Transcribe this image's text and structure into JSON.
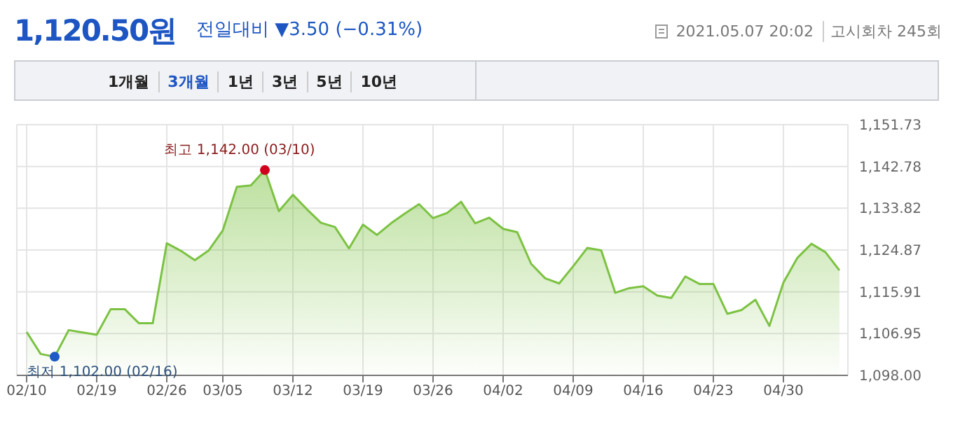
{
  "chart_data": {
    "type": "area",
    "title": "1,120.50원",
    "subtitle": "전일대비 ▼3.50 (−0.31%)",
    "annotations": [
      "2021.05.07 20:02",
      "고시회차 245회",
      "1개월",
      "3개월",
      "1년",
      "3년",
      "5년",
      "10년",
      "최고 1,142.00 (03/10)",
      "최저 1,102.00 (02/16)"
    ],
    "categories": [
      "02/10",
      null,
      null,
      null,
      null,
      "02/19",
      null,
      null,
      null,
      null,
      "02/26",
      null,
      null,
      null,
      "03/05",
      null,
      null,
      null,
      null,
      "03/12",
      null,
      null,
      null,
      null,
      "03/19",
      null,
      null,
      null,
      null,
      "03/26",
      null,
      null,
      null,
      null,
      "04/02",
      null,
      null,
      null,
      null,
      "04/09",
      null,
      null,
      null,
      null,
      "04/16",
      null,
      null,
      null,
      null,
      "04/23",
      null,
      null,
      null,
      null,
      "04/30",
      null,
      null,
      null,
      null
    ],
    "values": [
      1107.3,
      1102.6,
      1102,
      1107.7,
      1107.2,
      1106.7,
      1112.2,
      1112.2,
      1109.2,
      1109.2,
      1126.3,
      1124.7,
      1122.7,
      1124.8,
      1129.1,
      1138.4,
      1138.7,
      1142,
      1133.2,
      1136.7,
      1133.6,
      1130.7,
      1129.8,
      1125.2,
      1130.3,
      1128.1,
      1130.6,
      1132.7,
      1134.7,
      1131.7,
      1132.8,
      1135.2,
      1130.6,
      1131.8,
      1129.4,
      1128.7,
      1121.9,
      1118.8,
      1117.7,
      1121.4,
      1125.3,
      1124.8,
      1115.7,
      1116.7,
      1117.1,
      1115.1,
      1114.6,
      1119.2,
      1117.6,
      1117.6,
      1111.2,
      1112,
      1114.2,
      1108.6,
      1117.9,
      1123.2,
      1126.2,
      1124.4,
      1120.5
    ],
    "color": "#7cc242",
    "ylim": [
      1098,
      1151.73
    ],
    "yticks": [
      {
        "value": 1098,
        "label": "1,098.00"
      },
      {
        "value": 1106.95,
        "label": "1,106.95"
      },
      {
        "value": 1115.91,
        "label": "1,115.91"
      },
      {
        "value": 1124.87,
        "label": "1,124.87"
      },
      {
        "value": 1133.82,
        "label": "1,133.82"
      },
      {
        "value": 1142.78,
        "label": "1,142.78"
      },
      {
        "value": 1151.73,
        "label": "1,151.73"
      }
    ],
    "grid": true
  }
}
